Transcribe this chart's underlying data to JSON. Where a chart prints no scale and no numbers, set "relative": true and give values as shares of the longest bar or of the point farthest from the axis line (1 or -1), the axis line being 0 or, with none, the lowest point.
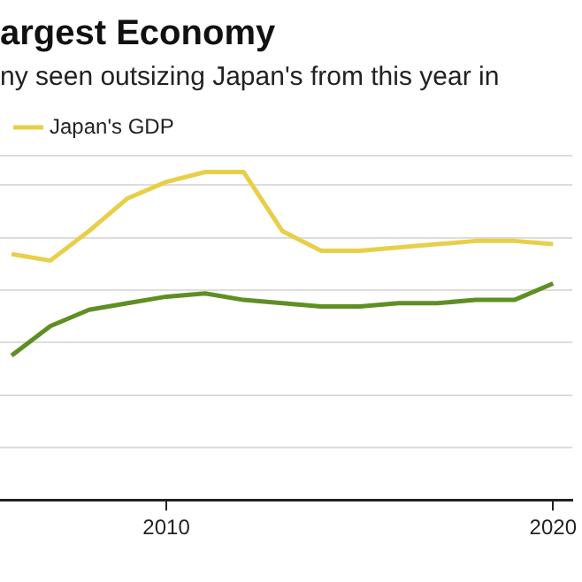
{
  "chart_data": {
    "type": "line",
    "title": "argest Economy",
    "subtitle": "ny seen outsizing Japan's from this year in",
    "relative": true,
    "legend": "top left",
    "grid": "y",
    "marker": "none",
    "line_style": "solid",
    "x": [
      2006,
      2007,
      2008,
      2009,
      2010,
      2011,
      2012,
      2013,
      2014,
      2015,
      2016,
      2017,
      2018,
      2019,
      2020
    ],
    "xlim": [
      2005.7,
      2020.5
    ],
    "xticks": [
      2010,
      2020
    ],
    "series": [
      {
        "name": "Japan's GDP",
        "color": "#e8cf4a",
        "values": [
          0.75,
          0.73,
          0.82,
          0.92,
          0.97,
          1.0,
          1.0,
          0.82,
          0.76,
          0.76,
          0.77,
          0.78,
          0.79,
          0.79,
          0.78
        ]
      },
      {
        "color": "#5f8f24",
        "values": [
          0.44,
          0.53,
          0.58,
          0.6,
          0.62,
          0.63,
          0.61,
          0.6,
          0.59,
          0.59,
          0.6,
          0.6,
          0.61,
          0.61,
          0.66
        ]
      }
    ]
  }
}
